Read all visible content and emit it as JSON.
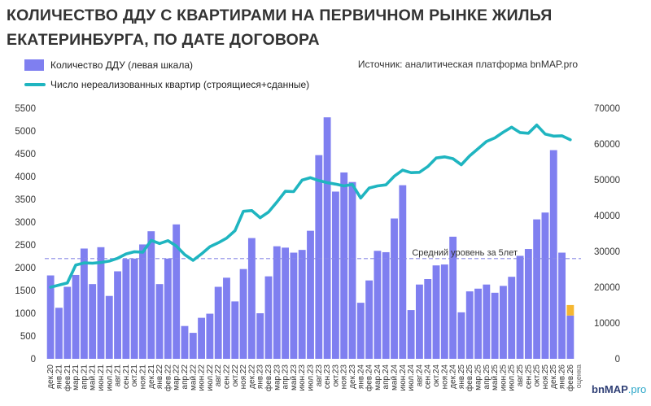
{
  "title": "КОЛИЧЕСТВО ДДУ С КВАРТИРАМИ НА ПЕРВИЧНОМ РЫНКЕ ЖИЛЬЯ ЕКАТЕРИНБУРГА, ПО ДАТЕ ДОГОВОРА",
  "legend": {
    "bars": "Количество ДДУ (левая шкала)",
    "line": "Число нереализованных квартир (строящиеся+сданные)"
  },
  "source": "Источник: аналитическая платформа bnMAP.pro",
  "logo": {
    "main": "bnMAP",
    "suffix": ".pro"
  },
  "colors": {
    "bars": "#7f7ff0",
    "line": "#1fb5c0",
    "estimate": "#f5b731",
    "avg_line": "#8a8ae6"
  },
  "chart_data": {
    "type": "bar+line",
    "categories": [
      "дек.20",
      "янв.21",
      "фев.21",
      "мар.21",
      "апр.21",
      "май.21",
      "июн.21",
      "июл.21",
      "авг.21",
      "сен.21",
      "окт.21",
      "ноя.21",
      "дек.21",
      "янв.22",
      "фев.22",
      "мар.22",
      "апр.22",
      "май.22",
      "июн.22",
      "июл.22",
      "авг.22",
      "сен.22",
      "окт.22",
      "ноя.22",
      "дек.22",
      "янв.23",
      "фев.23",
      "мар.23",
      "апр.23",
      "май.23",
      "июн.23",
      "июл.23",
      "авг.23",
      "сен.23",
      "окт.23",
      "ноя.23",
      "дек.23",
      "янв.24",
      "фев.24",
      "мар.24",
      "апр.24",
      "май.24",
      "июн.24",
      "июл.24",
      "авг.24",
      "сен.24",
      "окт.24",
      "ноя.24",
      "дек.24",
      "янв.25",
      "фев.25",
      "мар.25",
      "апр.25",
      "май.25",
      "июн.25",
      "июл.25",
      "авг.25",
      "сен.25",
      "окт.25",
      "ноя.25",
      "дек.25",
      "янв.26",
      "фев.26"
    ],
    "series": [
      {
        "name": "Количество ДДУ (левая шкала)",
        "type": "bar",
        "axis": "left",
        "values": [
          1830,
          1120,
          1580,
          1840,
          2420,
          1640,
          2450,
          1380,
          1920,
          2190,
          2200,
          2510,
          2800,
          1640,
          2200,
          2950,
          720,
          570,
          900,
          990,
          1580,
          1780,
          1260,
          1970,
          2650,
          1000,
          1810,
          2470,
          2440,
          2330,
          2390,
          2810,
          4470,
          5300,
          3670,
          4090,
          3880,
          1230,
          1720,
          2370,
          2340,
          3080,
          3810,
          1070,
          1630,
          1750,
          2050,
          2070,
          2680,
          1020,
          1480,
          1540,
          1630,
          1450,
          1600,
          1800,
          2260,
          2410,
          3060,
          3210,
          4580,
          2330,
          950
        ],
        "estimate_last": 230
      },
      {
        "name": "Число нереализованных квартир (строящиеся+сданные)",
        "type": "line",
        "axis": "right",
        "values": [
          20000,
          20600,
          21200,
          26200,
          26800,
          26700,
          26900,
          27300,
          28100,
          29300,
          29900,
          29800,
          33100,
          32200,
          33000,
          31500,
          29100,
          27500,
          29300,
          31300,
          32400,
          33700,
          35800,
          41200,
          41400,
          39400,
          41000,
          43800,
          46800,
          46700,
          49900,
          50600,
          49800,
          49200,
          48800,
          48300,
          48700,
          44900,
          47700,
          48300,
          48600,
          51000,
          52700,
          52000,
          52100,
          53700,
          56100,
          56400,
          55900,
          54200,
          56700,
          58700,
          60700,
          61700,
          63300,
          64700,
          63200,
          63000,
          65300,
          62800,
          62200,
          62300,
          61200
        ]
      }
    ],
    "y_left": {
      "min": 0,
      "max": 5500,
      "step": 500
    },
    "y_right": {
      "min": 0,
      "max": 70000,
      "step": 10000
    },
    "reference_line": {
      "label": "Средний уровень за 5лет",
      "value": 2200
    },
    "estimate_label": "оценка",
    "grid": false,
    "legend_position": "top-left"
  }
}
